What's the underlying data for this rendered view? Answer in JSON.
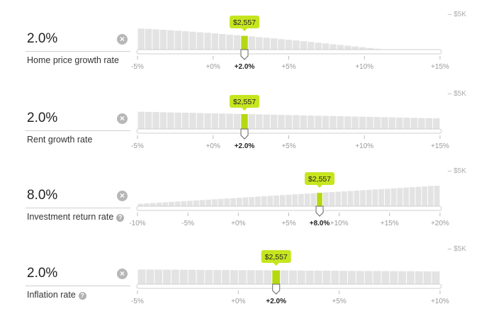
{
  "colors": {
    "bar": "#e3e3e3",
    "highlight": "#b5d911",
    "tooltip": "#c6e51f",
    "track": "#e6e6e6",
    "tick": "#999999"
  },
  "controls": [
    {
      "id": "home-price-growth",
      "value_text": "2.0%",
      "label": "Home price growth rate",
      "has_help": false,
      "max_label": "– $5K",
      "selected_label": "+2.0%",
      "tooltip": "$2,557",
      "chart_data": {
        "type": "bar",
        "x_range": [
          -5,
          15
        ],
        "selected_x": 2,
        "ylim": [
          0,
          5000
        ],
        "tick_labels": [
          {
            "x": -5,
            "label": "-5%"
          },
          {
            "x": 0,
            "label": "+0%"
          },
          {
            "x": 5,
            "label": "+5%"
          },
          {
            "x": 10,
            "label": "+10%"
          },
          {
            "x": 15,
            "label": "+15%"
          }
        ],
        "values": [
          3900,
          3840,
          3760,
          3680,
          3600,
          3510,
          3420,
          3320,
          3220,
          3120,
          3010,
          2900,
          2780,
          2670,
          2557,
          2440,
          2320,
          2200,
          2080,
          1950,
          1820,
          1690,
          1560,
          1420,
          1280,
          1140,
          1000,
          860,
          720,
          580,
          440,
          300,
          160,
          60,
          0,
          0,
          0,
          0,
          0,
          0,
          0
        ]
      }
    },
    {
      "id": "rent-growth",
      "value_text": "2.0%",
      "label": "Rent growth rate",
      "has_help": false,
      "max_label": "– $5K",
      "selected_label": "+2.0%",
      "tooltip": "$2,557",
      "chart_data": {
        "type": "bar",
        "x_range": [
          -5,
          15
        ],
        "selected_x": 2,
        "ylim": [
          0,
          5000
        ],
        "tick_labels": [
          {
            "x": -5,
            "label": "-5%"
          },
          {
            "x": 0,
            "label": "+0%"
          },
          {
            "x": 5,
            "label": "+5%"
          },
          {
            "x": 10,
            "label": "+10%"
          },
          {
            "x": 15,
            "label": "+15%"
          }
        ],
        "values": [
          3200,
          3170,
          3140,
          3110,
          3080,
          3050,
          3020,
          2990,
          2960,
          2930,
          2900,
          2870,
          2840,
          2800,
          2770,
          2740,
          2710,
          2680,
          2650,
          2620,
          2590,
          2560,
          2520,
          2490,
          2460,
          2430,
          2400,
          2370,
          2340,
          2310,
          2280,
          2250,
          2220,
          2190,
          2160,
          2130,
          2100,
          2070,
          2040,
          2010,
          1980
        ]
      }
    },
    {
      "id": "investment-return",
      "value_text": "8.0%",
      "label": "Investment return rate",
      "has_help": true,
      "max_label": "– $5K",
      "selected_label": "+8.0%",
      "tooltip": "$2,557",
      "chart_data": {
        "type": "bar",
        "x_range": [
          -10,
          20
        ],
        "selected_x": 8,
        "ylim": [
          0,
          5000
        ],
        "tick_labels": [
          {
            "x": -10,
            "label": "-10%"
          },
          {
            "x": -5,
            "label": "-5%"
          },
          {
            "x": 0,
            "label": "+0%"
          },
          {
            "x": 5,
            "label": "+5%"
          },
          {
            "x": 10,
            "label": "+10%"
          },
          {
            "x": 15,
            "label": "+15%"
          },
          {
            "x": 20,
            "label": "+20%"
          }
        ],
        "values": [
          450,
          520,
          590,
          660,
          730,
          800,
          870,
          940,
          1010,
          1080,
          1150,
          1220,
          1290,
          1360,
          1430,
          1500,
          1570,
          1640,
          1710,
          1780,
          1850,
          1920,
          1990,
          2060,
          2130,
          2200,
          2270,
          2340,
          2410,
          2480,
          2557,
          2620,
          2690,
          2760,
          2830,
          2900,
          2970,
          3040,
          3110,
          3180,
          3250,
          3320,
          3390,
          3460,
          3530,
          3600,
          3670,
          3740,
          3800
        ]
      }
    },
    {
      "id": "inflation",
      "value_text": "2.0%",
      "label": "Inflation rate",
      "has_help": true,
      "max_label": "– $5K",
      "selected_label": "+2.0%",
      "tooltip": "$2,557",
      "chart_data": {
        "type": "bar",
        "x_range": [
          -5,
          10
        ],
        "selected_x": 2,
        "ylim": [
          0,
          5000
        ],
        "tick_labels": [
          {
            "x": -5,
            "label": "-5%"
          },
          {
            "x": 0,
            "label": "+0%"
          },
          {
            "x": 5,
            "label": "+5%"
          },
          {
            "x": 10,
            "label": "+10%"
          }
        ],
        "values": [
          2720,
          2710,
          2700,
          2690,
          2680,
          2670,
          2660,
          2650,
          2640,
          2630,
          2620,
          2610,
          2600,
          2590,
          2580,
          2570,
          2557,
          2550,
          2540,
          2530,
          2520,
          2510,
          2500,
          2490,
          2480,
          2470,
          2460,
          2450,
          2440,
          2430,
          2420,
          2410,
          2400,
          2390,
          2380,
          2370
        ]
      }
    }
  ]
}
